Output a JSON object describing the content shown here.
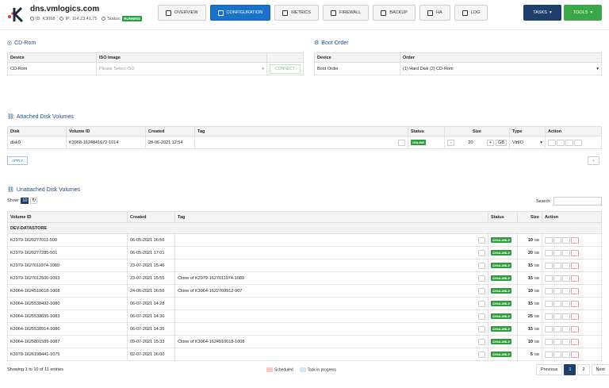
{
  "header": {
    "host": "dns.vmlogics.com",
    "id_label": "ID: K3068",
    "ip_label": "IP: 114.23.41.75",
    "status_label": "Status:",
    "status": "RUNNING"
  },
  "nav": {
    "tabs": [
      "OVERVIEW",
      "CONFIGURATION",
      "METRICS",
      "FIREWALL",
      "BACKUP",
      "HA",
      "LOG"
    ],
    "active": 1
  },
  "actions": {
    "tasks": "TASKS",
    "tools": "TOOLS"
  },
  "cdrom": {
    "title": "CD-Rom",
    "col_device": "Device",
    "col_iso": "ISO Image",
    "device": "CD-Rom",
    "iso_placeholder": "Please Select ISO",
    "connect": "CONNECT"
  },
  "boot": {
    "title": "Boot Order",
    "col_device": "Device",
    "col_order": "Order",
    "device": "Boot Order",
    "order": "(1) Hard Disk (2) CD-Rom"
  },
  "attached": {
    "title": "Attached Disk Volumes",
    "cols": [
      "Disk",
      "Volume ID",
      "Created",
      "Tag",
      "Status",
      "Size",
      "Type",
      "Action"
    ],
    "disk": "disk0",
    "volume_id": "K3068-1624841672-1014",
    "created": "28-06-2021 12:54",
    "status": "ONLINE",
    "minus": "-",
    "size": "20",
    "plus": "+",
    "unit": "GB",
    "type": "VirtIO",
    "apply": "APPLY",
    "add": "+"
  },
  "unattached": {
    "title": "Unattached Disk Volumes",
    "show_label": "Show:",
    "show_value": "10",
    "search_label": "Search:",
    "cols": [
      "Volume ID",
      "Created",
      "Tag",
      "Status",
      "Size",
      "Action"
    ],
    "group": "DEV-DATASTORE",
    "unit": "GB",
    "rows": [
      {
        "id": "K2979-1620277011-500",
        "created": "06-05-2021 16:56",
        "tag": "",
        "status": "AVAILABLE",
        "size": "10"
      },
      {
        "id": "K2979-1620277285-501",
        "created": "06-05-2021 17:01",
        "tag": "",
        "status": "AVAILABLE",
        "size": "20"
      },
      {
        "id": "K2979-1627011974-1089",
        "created": "23-07-2021 15:46",
        "tag": "",
        "status": "AVAILABLE",
        "size": "15"
      },
      {
        "id": "K2979-1627012500-1093",
        "created": "23-07-2021 15:55",
        "tag": "Clone of K2979-1627011974-1089",
        "status": "AVAILABLE",
        "size": "15"
      },
      {
        "id": "K3064-1624510618-1008",
        "created": "24-06-2021 16:56",
        "tag": "Clone of K3064-1622760912-907",
        "status": "AVAILABLE",
        "size": "10"
      },
      {
        "id": "K3064-1625538492-1080",
        "created": "06-07-2021 14:28",
        "tag": "",
        "status": "AVAILABLE",
        "size": "15"
      },
      {
        "id": "K3064-1625538655-1083",
        "created": "06-07-2021 14:30",
        "tag": "",
        "status": "AVAILABLE",
        "size": "25"
      },
      {
        "id": "K3064-1625538914-1086",
        "created": "06-07-2021 14:35",
        "tag": "",
        "status": "AVAILABLE",
        "size": "15"
      },
      {
        "id": "K3064-1625801589-1087",
        "created": "09-07-2021 15:33",
        "tag": "Clone of K3064-1624510618-1008",
        "status": "AVAILABLE",
        "size": "10"
      },
      {
        "id": "K3078-1626198441-1075",
        "created": "02-07-2021 16:00",
        "tag": "",
        "status": "AVAILABLE",
        "size": "5"
      }
    ],
    "entries": "Showing 1 to 10 of 11 entries",
    "legend_scheduled": "Scheduled",
    "legend_progress": "Task in progress",
    "prev": "Previous",
    "p1": "1",
    "p2": "2",
    "next": "Next"
  }
}
